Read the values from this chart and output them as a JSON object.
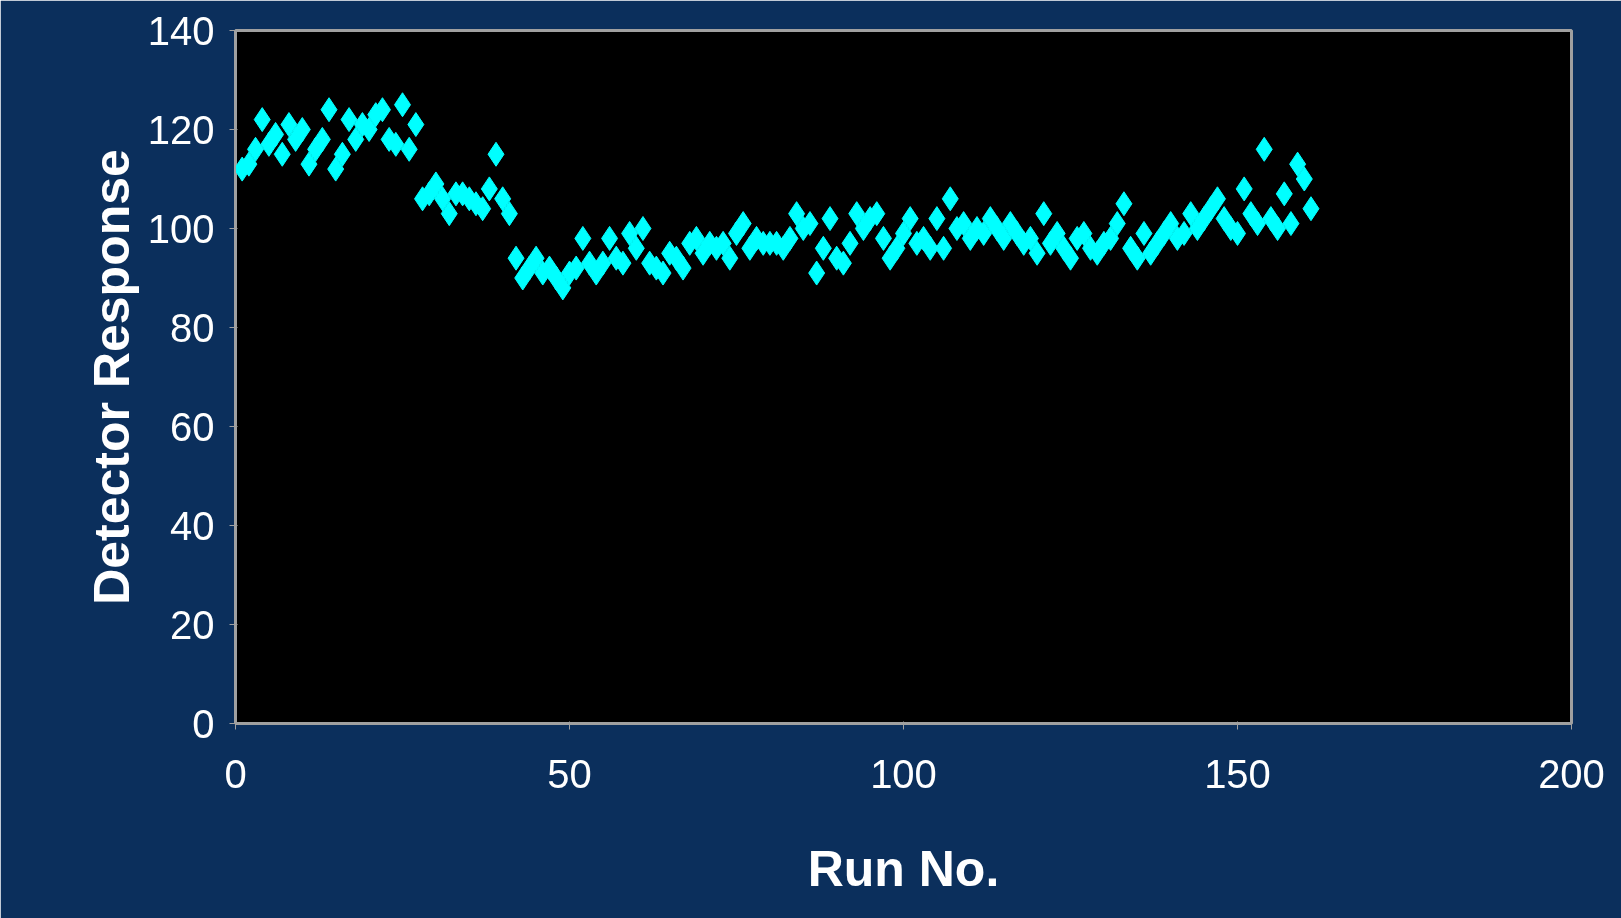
{
  "chart_data": {
    "type": "scatter",
    "xlabel": "Run No.",
    "ylabel": "Detector Response",
    "x": [
      1,
      2,
      3,
      4,
      5,
      6,
      7,
      8,
      9,
      10,
      11,
      12,
      13,
      14,
      15,
      16,
      17,
      18,
      19,
      20,
      21,
      22,
      23,
      24,
      25,
      26,
      27,
      28,
      29,
      30,
      31,
      32,
      33,
      34,
      35,
      36,
      37,
      38,
      39,
      40,
      41,
      42,
      43,
      44,
      45,
      46,
      47,
      48,
      49,
      50,
      51,
      52,
      53,
      54,
      55,
      56,
      57,
      58,
      59,
      60,
      61,
      62,
      63,
      64,
      65,
      66,
      67,
      68,
      69,
      70,
      71,
      72,
      73,
      74,
      75,
      76,
      77,
      78,
      79,
      80,
      81,
      82,
      83,
      84,
      85,
      86,
      87,
      88,
      89,
      90,
      91,
      92,
      93,
      94,
      95,
      96,
      97,
      98,
      99,
      100,
      101,
      102,
      103,
      104,
      105,
      106,
      107,
      108,
      109,
      110,
      111,
      112,
      113,
      114,
      115,
      116,
      117,
      118,
      119,
      120,
      121,
      122,
      123,
      124,
      125,
      126,
      127,
      128,
      129,
      130,
      131,
      132,
      133,
      134,
      135,
      136,
      137,
      138,
      139,
      140,
      141,
      142,
      143,
      144,
      145,
      146,
      147,
      148,
      149,
      150,
      151,
      152,
      153,
      154,
      155,
      156,
      157,
      158,
      159,
      160,
      161
    ],
    "series": [
      {
        "color": "#00ffff",
        "values": [
          112,
          113,
          116,
          122,
          117,
          119,
          115,
          121,
          118,
          120,
          113,
          116,
          118,
          124,
          112,
          115,
          122,
          118,
          121,
          120,
          123,
          124,
          118,
          117,
          125,
          116,
          121,
          106,
          107,
          109,
          106,
          103,
          107,
          107,
          106,
          105,
          104,
          108,
          115,
          106,
          103,
          94,
          90,
          92,
          94,
          91,
          92,
          90,
          88,
          91,
          92,
          98,
          93,
          91,
          93,
          98,
          94,
          93,
          99,
          96,
          100,
          93,
          92,
          91,
          95,
          94,
          92,
          97,
          98,
          95,
          97,
          96,
          97,
          94,
          99,
          101,
          96,
          98,
          97,
          97,
          97,
          96,
          98,
          103,
          100,
          101,
          91,
          96,
          102,
          94,
          93,
          97,
          103,
          100,
          102,
          103,
          98,
          94,
          96,
          99,
          102,
          97,
          98,
          96,
          102,
          96,
          106,
          100,
          101,
          98,
          100,
          99,
          102,
          100,
          98,
          101,
          99,
          97,
          98,
          95,
          103,
          97,
          99,
          96,
          94,
          98,
          99,
          96,
          95,
          97,
          98,
          101,
          105,
          96,
          94,
          99,
          95,
          97,
          99,
          101,
          98,
          99,
          103,
          100,
          102,
          104,
          106,
          102,
          100,
          99,
          108,
          103,
          101,
          116,
          102,
          100,
          107,
          101,
          113,
          110,
          104
        ]
      }
    ],
    "xlim": [
      0,
      200
    ],
    "xticks": [
      0,
      50,
      100,
      150,
      200
    ],
    "ylim": [
      0,
      140
    ],
    "yticks": [
      0,
      20,
      40,
      60,
      80,
      100,
      120,
      140
    ],
    "marker": "diamond",
    "grid": false
  }
}
